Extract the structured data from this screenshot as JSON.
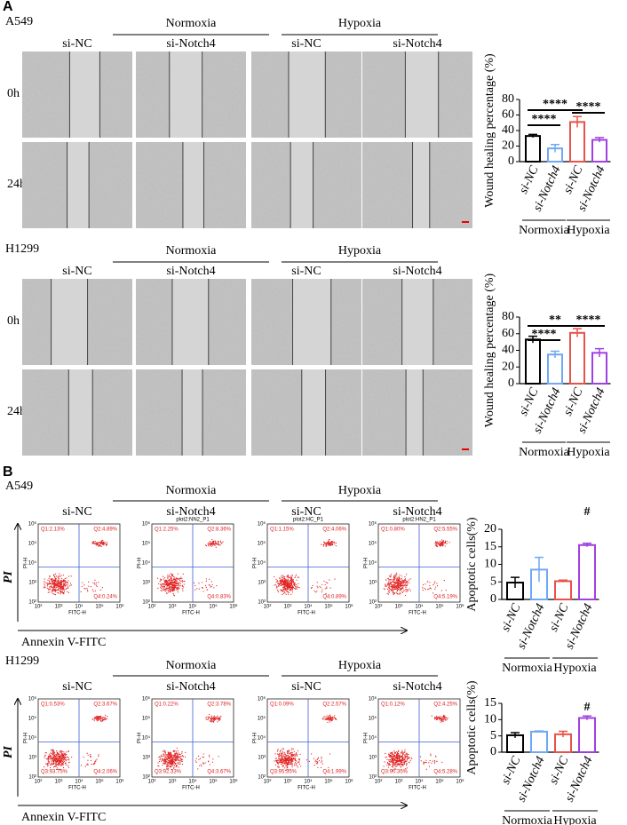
{
  "figure": {
    "panel_a": {
      "label": "A",
      "cell_lines": [
        "A549",
        "H1299"
      ],
      "conditions": [
        "Normoxia",
        "Hypoxia"
      ],
      "columns": [
        "si-NC",
        "si-Notch4",
        "si-NC",
        "si-Notch4"
      ],
      "time_points": [
        "0h",
        "24h"
      ]
    },
    "panel_b": {
      "label": "B",
      "cell_lines": [
        "A549",
        "H1299"
      ],
      "conditions": [
        "Normoxia",
        "Hypoxia"
      ],
      "columns": [
        "si-NC",
        "si-Notch4",
        "si-NC",
        "si-Notch4"
      ],
      "x_axis": "Annexin V-FITC",
      "y_axis": "PI",
      "plot_x_label": "FITC-H",
      "plot_y_label": "PI-H",
      "plot_ticks": [
        "10²",
        "10³",
        "10⁴",
        "10⁵",
        "10⁶"
      ],
      "plots": [
        [
          {
            "q1": "Q1:2.13%",
            "q2": "Q2:4.89%",
            "q4": "Q4:0.24%"
          },
          {
            "header": "plot2:NN2_P1",
            "q1": "Q1:2.25%",
            "q2": "Q2:8.36%",
            "q4": "Q4:0.83%"
          },
          {
            "header": "plot2:HC_P1",
            "q1": "Q1:1.15%",
            "q2": "Q2:4.06%",
            "q4": "Q4:0.89%"
          },
          {
            "header": "plot2:HN2_P1",
            "q1": "Q1:0.80%",
            "q2": "Q2:5.55%",
            "q4": "Q4:5.19%"
          }
        ],
        [
          {
            "q1": "Q1:0.53%",
            "q2": "Q2:3.67%",
            "q3": "Q3:93.75%",
            "q4": "Q4:2.06%"
          },
          {
            "q1": "Q1:0.22%",
            "q2": "Q2:3.78%",
            "q3": "Q3:92.33%",
            "q4": "Q4:3.67%"
          },
          {
            "q1": "Q1:0.09%",
            "q2": "Q2:2.57%",
            "q3": "Q3:95.35%",
            "q4": "Q4:1.99%"
          },
          {
            "q1": "Q1:0.12%",
            "q2": "Q2:4.25%",
            "q3": "Q3:90.35%",
            "q4": "Q4:5.28%"
          }
        ]
      ]
    }
  },
  "chart_data": [
    {
      "type": "bar",
      "ylabel": "Wound healing percentage (%)",
      "categories": [
        "si-NC",
        "si-Notch4",
        "si-NC",
        "si-Notch4"
      ],
      "groups": [
        "Normoxia",
        "Hypoxia"
      ],
      "values": [
        33,
        17,
        51,
        28
      ],
      "errors": [
        2,
        5,
        7,
        3
      ],
      "colors": [
        "#000000",
        "#6fa8f5",
        "#e8524a",
        "#a040e0"
      ],
      "ylim": [
        0,
        80
      ],
      "yticks": [
        0,
        20,
        40,
        60,
        80
      ],
      "annotations": [
        "****",
        "****",
        "****"
      ]
    },
    {
      "type": "bar",
      "ylabel": "Wound healing percentage (%)",
      "categories": [
        "si-NC",
        "si-Notch4",
        "si-NC",
        "si-Notch4"
      ],
      "groups": [
        "Normoxia",
        "Hypoxia"
      ],
      "values": [
        53,
        35,
        61,
        37
      ],
      "errors": [
        4,
        4,
        5,
        5
      ],
      "colors": [
        "#000000",
        "#6fa8f5",
        "#e8524a",
        "#a040e0"
      ],
      "ylim": [
        0,
        80
      ],
      "yticks": [
        0,
        20,
        40,
        60,
        80
      ],
      "annotations": [
        "****",
        "**",
        "****"
      ]
    },
    {
      "type": "bar",
      "ylabel": "Apoptotic cells(%)",
      "categories": [
        "si-NC",
        "si-Notch4",
        "si-NC",
        "si-Notch4"
      ],
      "groups": [
        "Normoxia",
        "Hypoxia"
      ],
      "values": [
        4.8,
        8.5,
        5.2,
        15.5
      ],
      "errors": [
        1.5,
        3.5,
        0.3,
        0.5
      ],
      "colors": [
        "#000000",
        "#6fa8f5",
        "#e8524a",
        "#a040e0"
      ],
      "ylim": [
        0,
        20
      ],
      "yticks": [
        0,
        5,
        10,
        15,
        20
      ],
      "annotations": [
        "#"
      ]
    },
    {
      "type": "bar",
      "ylabel": "Apoptotic cells(%)",
      "categories": [
        "si-NC",
        "si-Notch4",
        "si-NC",
        "si-Notch4"
      ],
      "groups": [
        "Normoxia",
        "Hypoxia"
      ],
      "values": [
        5.2,
        6.3,
        5.5,
        10.5
      ],
      "errors": [
        0.8,
        0.2,
        0.9,
        0.6
      ],
      "colors": [
        "#000000",
        "#6fa8f5",
        "#e8524a",
        "#a040e0"
      ],
      "ylim": [
        0,
        15
      ],
      "yticks": [
        0,
        5,
        10,
        15
      ],
      "annotations": [
        "#"
      ]
    }
  ]
}
